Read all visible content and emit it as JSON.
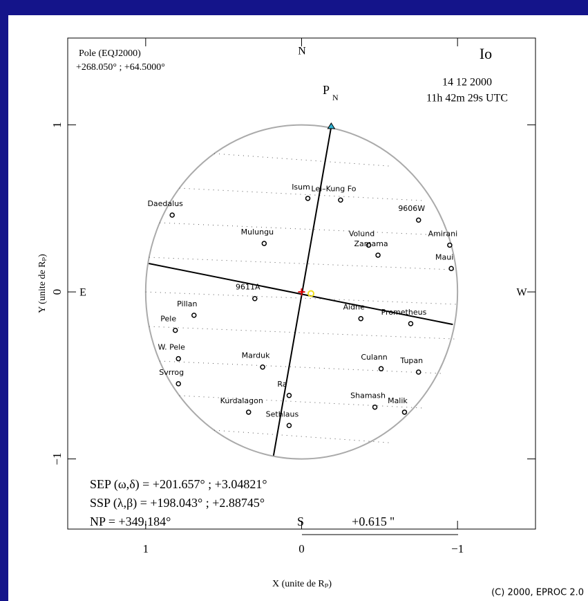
{
  "chart_data": {
    "type": "scatter",
    "x_label": "X (unite de Rₚ)",
    "y_label": "Y (unite de Rₚ)",
    "xlim": [
      1.5,
      -1.5
    ],
    "ylim": [
      -1.42,
      1.52
    ],
    "xticks": [
      1,
      0,
      {
        "value": -1,
        "label": "−1"
      }
    ],
    "yticks": [
      {
        "value": -1,
        "label": "−1"
      },
      0,
      1
    ],
    "pole_title": "Pole (EQJ2000)",
    "pole_values": "+268.050° ; +64.5000°",
    "north": "N",
    "east": "E",
    "west": "W",
    "body": "Io",
    "date": "14 12 2000",
    "time": "11h 42m 29s UTC",
    "pole_marker": "P",
    "pole_marker_sub": "N",
    "sep": "SEP (ω,δ) = +201.657° ; +3.04821°",
    "ssp": "SSP (λ,β) = +198.043° ; +2.88745°",
    "np": "NP = +349.184°",
    "scale_letter": "S",
    "scale_value": "+0.615 ''",
    "copyright": "(C) 2000, EPROC 2.0",
    "meridian": {
      "x": [
        -0.19,
        0.18
      ],
      "y": [
        0.99,
        -0.98
      ]
    },
    "equator": {
      "x": [
        0.98,
        -0.97
      ],
      "y": [
        0.17,
        -0.195
      ]
    },
    "sub_points": {
      "x": [
        0,
        -0.06
      ],
      "y": [
        0,
        -0.01
      ],
      "colors": [
        "#e00000",
        "#f0e020"
      ]
    },
    "features": {
      "names": [
        "Lei–Kung Fo",
        "Isum",
        "Daedalus",
        "9606W",
        "Amirani",
        "Maui",
        "Mulungu",
        "Volund",
        "Zamama",
        "9611A",
        "Aidne",
        "Prometheus",
        "Pillan",
        "Pele",
        "W. Pele",
        "Svrrog",
        "Marduk",
        "Culann",
        "Tupan",
        "Ra",
        "Shamash",
        "Malik",
        "Kurdalagon",
        "Sethlaus"
      ],
      "x": [
        -0.25,
        -0.04,
        0.83,
        -0.75,
        -0.95,
        -0.96,
        0.24,
        -0.43,
        -0.49,
        0.3,
        -0.38,
        -0.7,
        0.69,
        0.81,
        0.79,
        0.79,
        0.25,
        -0.51,
        -0.75,
        0.08,
        -0.47,
        -0.66,
        0.34,
        0.08
      ],
      "y": [
        0.55,
        0.56,
        0.46,
        0.43,
        0.28,
        0.14,
        0.29,
        0.28,
        0.22,
        -0.04,
        -0.16,
        -0.19,
        -0.14,
        -0.23,
        -0.4,
        -0.55,
        -0.45,
        -0.46,
        -0.48,
        -0.62,
        -0.69,
        -0.72,
        -0.72,
        -0.8
      ]
    }
  }
}
